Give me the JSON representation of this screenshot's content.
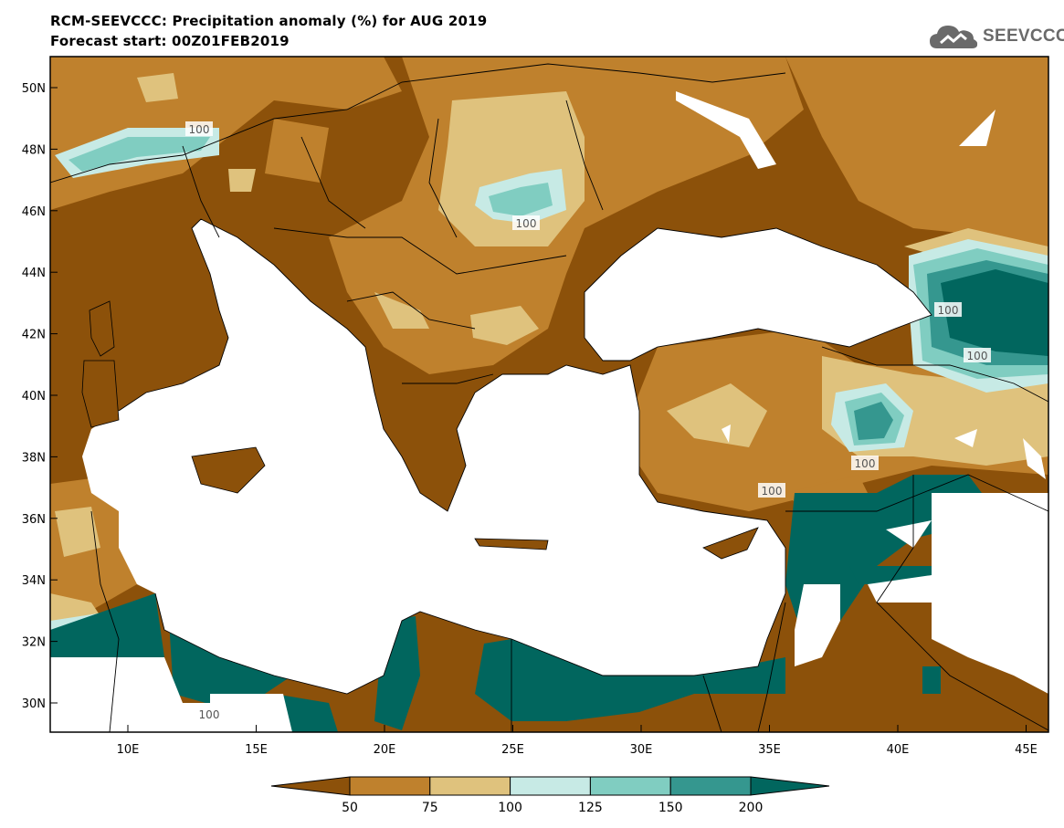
{
  "header": {
    "title": "RCM-SEEVCCC: Precipitation anomaly (%) for AUG 2019",
    "subtitle": "Forecast start: 00Z01FEB2019"
  },
  "logo": {
    "text": "SEEVCCC",
    "icon": "cloud-logo-icon"
  },
  "map": {
    "lat_labels": [
      "50N",
      "48N",
      "46N",
      "44N",
      "42N",
      "40N",
      "38N",
      "36N",
      "34N",
      "32N",
      "30N"
    ],
    "lon_labels": [
      "10E",
      "15E",
      "20E",
      "25E",
      "30E",
      "35E",
      "40E",
      "45E"
    ],
    "contour_labels": [
      "100",
      "100",
      "100",
      "100",
      "100",
      "100",
      "100"
    ],
    "colors": {
      "below_50": "#8c510a",
      "50_75": "#bf812d",
      "75_100": "#dfc27d",
      "100_125": "#c7eae5",
      "125_150": "#80cdc1",
      "150_200": "#35978f",
      "above_200": "#01665e",
      "sea": "#ffffff"
    }
  },
  "colorbar": {
    "ticks": [
      "50",
      "75",
      "100",
      "125",
      "150",
      "200"
    ],
    "colors": [
      "#8c510a",
      "#bf812d",
      "#dfc27d",
      "#c7eae5",
      "#80cdc1",
      "#35978f",
      "#01665e"
    ]
  }
}
